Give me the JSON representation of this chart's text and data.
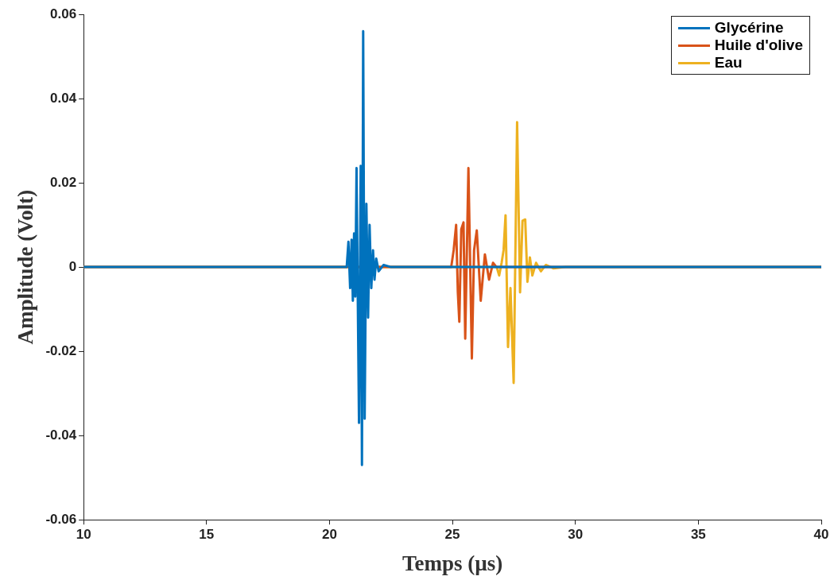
{
  "chart_data": {
    "type": "line",
    "xlabel": "Temps (µs)",
    "ylabel": "Amplitude (Volt)",
    "xlim": [
      10,
      40
    ],
    "xticks": [
      10,
      15,
      20,
      25,
      30,
      35,
      40
    ],
    "ylim": [
      -0.06,
      0.06
    ],
    "yticks": [
      -0.06,
      -0.04,
      -0.02,
      0,
      0.02,
      0.04,
      0.06
    ],
    "grid": false,
    "legend": "top right",
    "marker": "none",
    "line_style": "solid",
    "series": [
      {
        "name": "Glycérine",
        "color": "#0072bd",
        "x": [
          10,
          20.7,
          20.77,
          20.84,
          20.9,
          20.95,
          21.0,
          21.05,
          21.1,
          21.2,
          21.27,
          21.32,
          21.37,
          21.43,
          21.5,
          21.57,
          21.63,
          21.7,
          21.77,
          21.83,
          21.9,
          22.0,
          22.2,
          22.5,
          40
        ],
        "values": [
          0,
          0,
          0.006,
          -0.005,
          0.0065,
          -0.008,
          0.008,
          -0.007,
          0.0235,
          -0.037,
          0.024,
          -0.047,
          0.056,
          -0.036,
          0.015,
          -0.012,
          0.01,
          -0.005,
          0.004,
          -0.003,
          0.002,
          -0.001,
          0.0005,
          0,
          0
        ]
      },
      {
        "name": "Huile d'olive",
        "color": "#d95319",
        "x": [
          10,
          24.95,
          25.05,
          25.15,
          25.22,
          25.28,
          25.36,
          25.45,
          25.52,
          25.65,
          25.79,
          25.88,
          25.99,
          26.15,
          26.32,
          26.49,
          26.65,
          26.79,
          40
        ],
        "values": [
          0,
          0,
          0.004,
          0.01,
          -0.006,
          -0.013,
          0.009,
          0.0106,
          -0.017,
          0.0235,
          -0.0217,
          0.004,
          0.0087,
          -0.008,
          0.003,
          -0.003,
          0.001,
          0,
          0
        ]
      },
      {
        "name": "Eau",
        "color": "#edb120",
        "x": [
          10,
          26.8,
          26.9,
          27.0,
          27.08,
          27.16,
          27.26,
          27.36,
          27.49,
          27.63,
          27.75,
          27.85,
          27.96,
          28.05,
          28.15,
          28.25,
          28.4,
          28.6,
          28.8,
          29.1,
          29.6,
          40
        ],
        "values": [
          0,
          0,
          -0.002,
          0.001,
          0.004,
          0.0123,
          -0.019,
          -0.005,
          -0.0275,
          0.0344,
          -0.006,
          0.011,
          0.0113,
          -0.0035,
          0.0023,
          -0.002,
          0.001,
          -0.001,
          0.0005,
          -0.0003,
          0,
          0
        ]
      }
    ]
  }
}
